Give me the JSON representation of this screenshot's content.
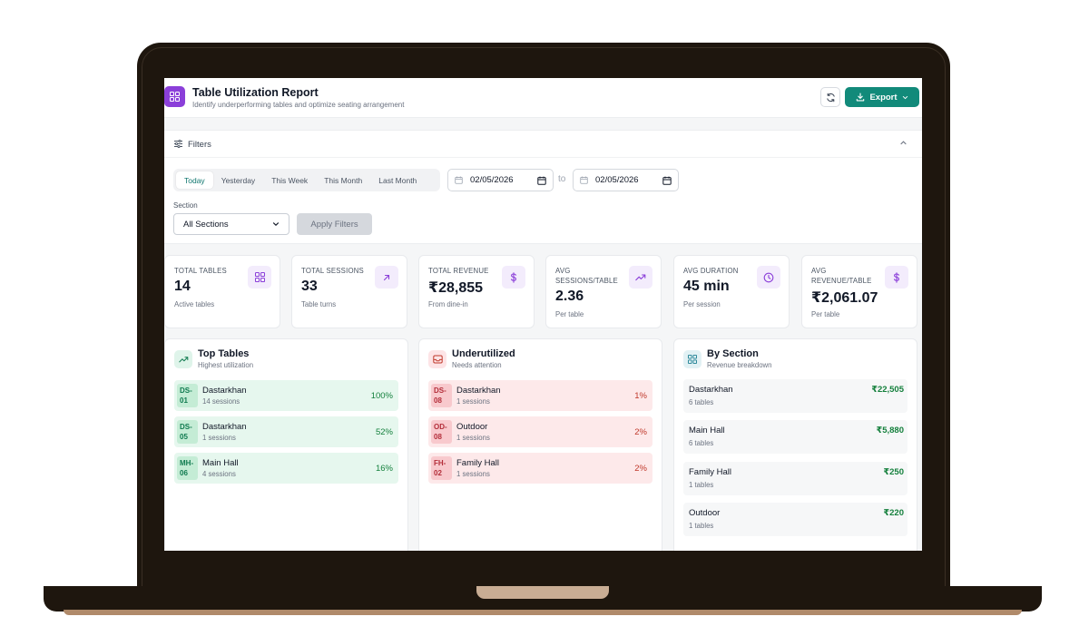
{
  "header": {
    "title": "Table Utilization Report",
    "subtitle": "Identify underperforming tables and optimize seating arrangement",
    "export_label": "Export"
  },
  "filters": {
    "title": "Filters",
    "tabs": [
      {
        "label": "Today",
        "active": true
      },
      {
        "label": "Yesterday",
        "active": false
      },
      {
        "label": "This Week",
        "active": false
      },
      {
        "label": "This Month",
        "active": false
      },
      {
        "label": "Last Month",
        "active": false
      }
    ],
    "date_from": "02/05/2026",
    "to_label": "to",
    "date_to": "02/05/2026",
    "section_label": "Section",
    "section_value": "All Sections",
    "apply_label": "Apply Filters"
  },
  "stats": [
    {
      "label": "TOTAL TABLES",
      "value": "14",
      "sub": "Active tables",
      "icon": "grid-icon"
    },
    {
      "label": "TOTAL SESSIONS",
      "value": "33",
      "sub": "Table turns",
      "icon": "arrow-up-right-icon"
    },
    {
      "label": "TOTAL REVENUE",
      "value": "₹28,855",
      "sub": "From dine-in",
      "icon": "dollar-icon"
    },
    {
      "label": "AVG SESSIONS/TABLE",
      "value": "2.36",
      "sub": "Per table",
      "icon": "trending-up-icon"
    },
    {
      "label": "AVG DURATION",
      "value": "45 min",
      "sub": "Per session",
      "icon": "clock-icon"
    },
    {
      "label": "AVG REVENUE/TABLE",
      "value": "₹2,061.07",
      "sub": "Per table",
      "icon": "dollar-icon"
    }
  ],
  "top_tables": {
    "title": "Top Tables",
    "subtitle": "Highest utilization",
    "rows": [
      {
        "code": "DS-01",
        "name": "Dastarkhan",
        "sessions": "14 sessions",
        "pct": "100%"
      },
      {
        "code": "DS-05",
        "name": "Dastarkhan",
        "sessions": "1 sessions",
        "pct": "52%"
      },
      {
        "code": "MH-06",
        "name": "Main Hall",
        "sessions": "4 sessions",
        "pct": "16%"
      }
    ]
  },
  "underutilized": {
    "title": "Underutilized",
    "subtitle": "Needs attention",
    "rows": [
      {
        "code": "DS-08",
        "name": "Dastarkhan",
        "sessions": "1 sessions",
        "pct": "1%"
      },
      {
        "code": "OD-08",
        "name": "Outdoor",
        "sessions": "1 sessions",
        "pct": "2%"
      },
      {
        "code": "FH-02",
        "name": "Family Hall",
        "sessions": "1 sessions",
        "pct": "2%"
      }
    ]
  },
  "by_section": {
    "title": "By Section",
    "subtitle": "Revenue breakdown",
    "rows": [
      {
        "name": "Dastarkhan",
        "count": "6 tables",
        "revenue": "₹22,505"
      },
      {
        "name": "Main Hall",
        "count": "6 tables",
        "revenue": "₹5,880"
      },
      {
        "name": "Family Hall",
        "count": "1 tables",
        "revenue": "₹250"
      },
      {
        "name": "Outdoor",
        "count": "1 tables",
        "revenue": "₹220"
      }
    ]
  },
  "colors": {
    "accent": "#128a7a",
    "brand": "#8b3fd9",
    "positive": "#15803d",
    "negative": "#c0392b"
  }
}
